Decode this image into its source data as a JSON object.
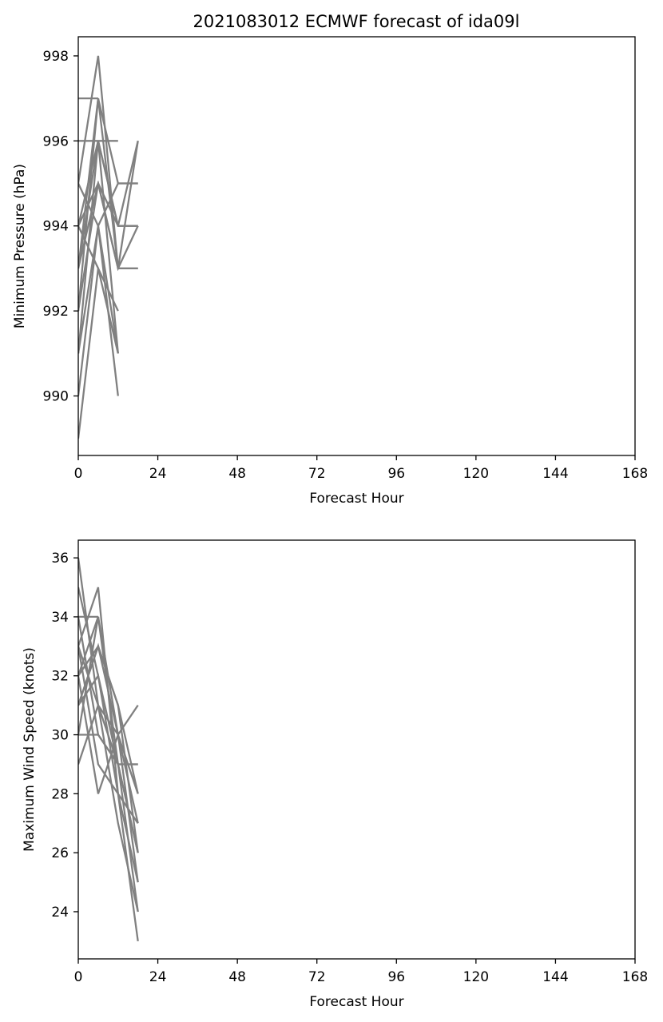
{
  "title": "2021083012 ECMWF forecast of ida09l",
  "line_color": "#808080",
  "chart_data": [
    {
      "type": "line",
      "xlabel": "Forecast Hour",
      "ylabel": "Minimum Pressure (hPa)",
      "xlim": [
        0,
        168
      ],
      "ylim": [
        988.6,
        998.45
      ],
      "xticks": [
        0,
        24,
        48,
        72,
        96,
        120,
        144,
        168
      ],
      "yticks": [
        990,
        992,
        994,
        996,
        998
      ],
      "series": [
        {
          "x": [
            0,
            6
          ],
          "y": [
            997,
            997
          ]
        },
        {
          "x": [
            0,
            6,
            12
          ],
          "y": [
            996,
            996,
            996
          ]
        },
        {
          "x": [
            0,
            6,
            12,
            18
          ],
          "y": [
            995,
            998,
            993,
            993
          ]
        },
        {
          "x": [
            0,
            6,
            12,
            18
          ],
          "y": [
            993,
            997,
            995,
            995
          ]
        },
        {
          "x": [
            0,
            6,
            12,
            18
          ],
          "y": [
            994,
            996,
            994,
            994
          ]
        },
        {
          "x": [
            0,
            6,
            12,
            18
          ],
          "y": [
            992,
            995,
            993,
            996
          ]
        },
        {
          "x": [
            0,
            6,
            12
          ],
          "y": [
            991,
            996,
            991
          ]
        },
        {
          "x": [
            0,
            6,
            12
          ],
          "y": [
            990,
            994,
            990
          ]
        },
        {
          "x": [
            0,
            6,
            12
          ],
          "y": [
            989,
            993,
            992
          ]
        },
        {
          "x": [
            0,
            6,
            12,
            18
          ],
          "y": [
            995,
            994,
            995,
            995
          ]
        },
        {
          "x": [
            0,
            6,
            12,
            18
          ],
          "y": [
            994,
            995,
            993,
            994
          ]
        },
        {
          "x": [
            0,
            6,
            12,
            18
          ],
          "y": [
            993,
            996,
            994,
            996
          ]
        },
        {
          "x": [
            0,
            6,
            12,
            18
          ],
          "y": [
            992,
            997,
            993,
            993
          ]
        },
        {
          "x": [
            0,
            6,
            12
          ],
          "y": [
            991,
            994,
            991
          ]
        },
        {
          "x": [
            0,
            6,
            12,
            18
          ],
          "y": [
            993,
            995,
            994,
            994
          ]
        },
        {
          "x": [
            0,
            6,
            12
          ],
          "y": [
            994,
            993,
            991
          ]
        }
      ]
    },
    {
      "type": "line",
      "xlabel": "Forecast Hour",
      "ylabel": "Maximum Wind Speed (knots)",
      "xlim": [
        0,
        168
      ],
      "ylim": [
        22.4,
        36.6
      ],
      "xticks": [
        0,
        24,
        48,
        72,
        96,
        120,
        144,
        168
      ],
      "yticks": [
        24,
        26,
        28,
        30,
        32,
        34,
        36
      ],
      "series": [
        {
          "x": [
            0,
            6
          ],
          "y": [
            34,
            34
          ]
        },
        {
          "x": [
            0,
            6,
            12,
            18
          ],
          "y": [
            36,
            31,
            29,
            24
          ]
        },
        {
          "x": [
            0,
            6,
            12,
            18
          ],
          "y": [
            33,
            35,
            28,
            23
          ]
        },
        {
          "x": [
            0,
            6,
            12,
            18
          ],
          "y": [
            32,
            34,
            30,
            25
          ]
        },
        {
          "x": [
            0,
            6,
            12,
            18
          ],
          "y": [
            31,
            33,
            31,
            26
          ]
        },
        {
          "x": [
            0,
            6,
            12,
            18
          ],
          "y": [
            30,
            30,
            29,
            29
          ]
        },
        {
          "x": [
            0,
            6,
            12,
            18
          ],
          "y": [
            29,
            31,
            30,
            31
          ]
        },
        {
          "x": [
            0,
            6,
            12,
            18
          ],
          "y": [
            32,
            28,
            30,
            28
          ]
        },
        {
          "x": [
            0,
            6,
            12,
            18
          ],
          "y": [
            33,
            29,
            28,
            27
          ]
        },
        {
          "x": [
            0,
            6,
            12,
            18
          ],
          "y": [
            35,
            32,
            29,
            29
          ]
        },
        {
          "x": [
            0,
            6,
            12,
            18
          ],
          "y": [
            31,
            32,
            28,
            25
          ]
        },
        {
          "x": [
            0,
            6,
            12,
            18
          ],
          "y": [
            30,
            34,
            29,
            26
          ]
        },
        {
          "x": [
            0,
            6,
            12,
            18
          ],
          "y": [
            33,
            31,
            27,
            24
          ]
        },
        {
          "x": [
            0,
            6,
            12,
            18
          ],
          "y": [
            32,
            33,
            31,
            28
          ]
        },
        {
          "x": [
            0,
            6,
            12,
            18
          ],
          "y": [
            34,
            30,
            29,
            26
          ]
        },
        {
          "x": [
            0,
            6,
            12,
            18
          ],
          "y": [
            31,
            33,
            30,
            27
          ]
        }
      ]
    }
  ]
}
